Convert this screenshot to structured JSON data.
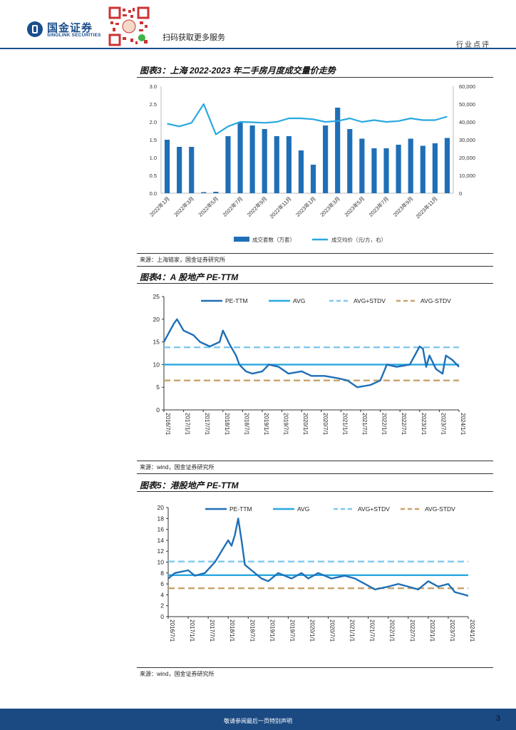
{
  "header": {
    "logo_cn": "国金证券",
    "logo_en": "SINOLINK SECURITIES",
    "qr_caption": "扫码获取更多服务",
    "category": "行业点评"
  },
  "fig3": {
    "title": "图表3：上海 2022-2023 年二手房月度成交量价走势",
    "source": "来源：上海链家，国金证券研究所",
    "chart_data": {
      "type": "bar",
      "categories": [
        "2022年1月",
        "2022年2月",
        "2022年3月",
        "2022年4月",
        "2022年5月",
        "2022年6月",
        "2022年7月",
        "2022年8月",
        "2022年9月",
        "2022年10月",
        "2022年11月",
        "2022年12月",
        "2023年1月",
        "2023年2月",
        "2023年3月",
        "2023年4月",
        "2023年5月",
        "2023年6月",
        "2023年7月",
        "2023年8月",
        "2023年9月",
        "2023年10月",
        "2023年11月",
        "2023年12月"
      ],
      "x_tick_labels": [
        "2022年1月",
        "2022年3月",
        "2022年5月",
        "2022年7月",
        "2022年9月",
        "2022年11月",
        "2023年1月",
        "2023年3月",
        "2023年5月",
        "2023年7月",
        "2023年9月",
        "2023年11月"
      ],
      "series": [
        {
          "name": "成交套数（万套）",
          "kind": "bar",
          "axis": "left",
          "color": "#1f6fb6",
          "values": [
            1.5,
            1.3,
            1.3,
            0.03,
            0.04,
            1.6,
            2.0,
            1.9,
            1.8,
            1.6,
            1.6,
            1.2,
            0.8,
            1.9,
            2.4,
            1.8,
            1.53,
            1.26,
            1.26,
            1.36,
            1.53,
            1.33,
            1.4,
            1.55
          ]
        },
        {
          "name": "成交均价（元/方，右）",
          "kind": "line",
          "axis": "right",
          "color": "#29a8e0",
          "values": [
            39000,
            37500,
            39500,
            50000,
            33000,
            37500,
            40000,
            39800,
            39500,
            40000,
            42000,
            42000,
            41500,
            40000,
            40500,
            42000,
            40000,
            41000,
            40000,
            40500,
            42000,
            41000,
            41000,
            43000
          ]
        }
      ],
      "y_left": {
        "ylim": [
          0,
          3.0
        ],
        "ticks": [
          "0.0",
          "0.5",
          "1.0",
          "1.5",
          "2.0",
          "2.5",
          "3.0"
        ]
      },
      "y_right": {
        "ylim": [
          0,
          60000
        ],
        "ticks": [
          "0",
          "10,000",
          "20,000",
          "30,000",
          "40,000",
          "50,000",
          "60,000"
        ]
      },
      "legend_position": "bottom"
    }
  },
  "fig4": {
    "title": "图表4：A 股地产 PE-TTM",
    "source": "来源：wind，国金证券研究所",
    "chart_data": {
      "type": "line",
      "x_tick_labels": [
        "2016/7/1",
        "2017/1/1",
        "2017/7/1",
        "2018/1/1",
        "2018/7/1",
        "2019/1/1",
        "2019/7/1",
        "2020/1/1",
        "2020/7/1",
        "2021/1/1",
        "2021/7/1",
        "2022/1/1",
        "2022/7/1",
        "2023/1/1",
        "2023/7/1",
        "2024/1/1"
      ],
      "ylim": [
        0,
        25
      ],
      "y_ticks": [
        "0",
        "5",
        "10",
        "15",
        "20",
        "25"
      ],
      "legend_position": "top",
      "series": [
        {
          "name": "PE-TTM",
          "kind": "line",
          "color": "#1f6fb6",
          "points": [
            [
              "2016/7/1",
              15
            ],
            [
              "2016/10/1",
              19
            ],
            [
              "2016/11/1",
              20
            ],
            [
              "2017/1/1",
              17.5
            ],
            [
              "2017/4/1",
              16.5
            ],
            [
              "2017/6/1",
              15
            ],
            [
              "2017/9/1",
              14
            ],
            [
              "2017/12/1",
              15
            ],
            [
              "2018/1/1",
              17.5
            ],
            [
              "2018/3/1",
              14.5
            ],
            [
              "2018/5/1",
              12
            ],
            [
              "2018/6/1",
              10
            ],
            [
              "2018/8/1",
              8.5
            ],
            [
              "2018/10/1",
              8
            ],
            [
              "2019/1/1",
              8.5
            ],
            [
              "2019/3/1",
              10
            ],
            [
              "2019/6/1",
              9.5
            ],
            [
              "2019/9/1",
              8
            ],
            [
              "2020/1/1",
              8.5
            ],
            [
              "2020/4/1",
              7.5
            ],
            [
              "2020/8/1",
              7.5
            ],
            [
              "2020/12/1",
              7
            ],
            [
              "2021/3/1",
              6.5
            ],
            [
              "2021/6/1",
              5
            ],
            [
              "2021/10/1",
              5.5
            ],
            [
              "2022/1/1",
              6.5
            ],
            [
              "2022/3/1",
              10
            ],
            [
              "2022/6/1",
              9.5
            ],
            [
              "2022/10/1",
              10
            ],
            [
              "2023/1/1",
              14
            ],
            [
              "2023/2/1",
              13.5
            ],
            [
              "2023/3/1",
              9.5
            ],
            [
              "2023/4/1",
              12
            ],
            [
              "2023/6/1",
              9
            ],
            [
              "2023/8/1",
              8
            ],
            [
              "2023/9/1",
              12
            ],
            [
              "2023/11/1",
              11
            ],
            [
              "2024/1/1",
              9.5
            ]
          ]
        },
        {
          "name": "AVG",
          "kind": "hline",
          "color": "#29a8e0",
          "value": 10
        },
        {
          "name": "AVG+STDV",
          "kind": "hline",
          "color": "#7ec8ee",
          "dash": true,
          "value": 13.8
        },
        {
          "name": "AVG-STDV",
          "kind": "hline",
          "color": "#c8a36a",
          "dash": true,
          "value": 6.5
        }
      ]
    }
  },
  "fig5": {
    "title": "图表5：港股地产 PE-TTM",
    "source": "来源：wind，国金证券研究所",
    "chart_data": {
      "type": "line",
      "x_tick_labels": [
        "2016/7/1",
        "2017/1/1",
        "2017/7/1",
        "2018/1/1",
        "2018/7/1",
        "2019/1/1",
        "2019/7/1",
        "2020/1/1",
        "2020/7/1",
        "2021/1/1",
        "2021/7/1",
        "2022/1/1",
        "2022/7/1",
        "2023/1/1",
        "2023/7/1",
        "2024/1/1"
      ],
      "ylim": [
        0,
        20
      ],
      "y_ticks": [
        "0",
        "2",
        "4",
        "6",
        "8",
        "10",
        "12",
        "14",
        "16",
        "18",
        "20"
      ],
      "legend_position": "top",
      "series": [
        {
          "name": "PE-TTM",
          "kind": "line",
          "color": "#1f6fb6",
          "points": [
            [
              "2016/7/1",
              7
            ],
            [
              "2016/9/1",
              8
            ],
            [
              "2017/1/1",
              8.5
            ],
            [
              "2017/3/1",
              7.5
            ],
            [
              "2017/6/1",
              8
            ],
            [
              "2017/9/1",
              10
            ],
            [
              "2017/12/1",
              13
            ],
            [
              "2018/1/1",
              14
            ],
            [
              "2018/2/1",
              13
            ],
            [
              "2018/3/1",
              15
            ],
            [
              "2018/4/1",
              18
            ],
            [
              "2018/5/1",
              14
            ],
            [
              "2018/6/1",
              9.5
            ],
            [
              "2018/8/1",
              8.5
            ],
            [
              "2018/11/1",
              7
            ],
            [
              "2019/1/1",
              6.5
            ],
            [
              "2019/4/1",
              8
            ],
            [
              "2019/8/1",
              7
            ],
            [
              "2019/11/1",
              8
            ],
            [
              "2020/1/1",
              7
            ],
            [
              "2020/4/1",
              8
            ],
            [
              "2020/8/1",
              7
            ],
            [
              "2020/12/1",
              7.5
            ],
            [
              "2021/3/1",
              7
            ],
            [
              "2021/6/1",
              6
            ],
            [
              "2021/9/1",
              5
            ],
            [
              "2022/1/1",
              5.5
            ],
            [
              "2022/4/1",
              6
            ],
            [
              "2022/7/1",
              5.5
            ],
            [
              "2022/10/1",
              5
            ],
            [
              "2023/1/1",
              6.5
            ],
            [
              "2023/4/1",
              5.5
            ],
            [
              "2023/7/1",
              6
            ],
            [
              "2023/9/1",
              4.5
            ],
            [
              "2023/12/1",
              4
            ],
            [
              "2024/1/1",
              3.8
            ]
          ]
        },
        {
          "name": "AVG",
          "kind": "hline",
          "color": "#29a8e0",
          "value": 7.6
        },
        {
          "name": "AVG+STDV",
          "kind": "hline",
          "color": "#7ec8ee",
          "dash": true,
          "value": 10.1
        },
        {
          "name": "AVG-STDV",
          "kind": "hline",
          "color": "#c8a36a",
          "dash": true,
          "value": 5.2
        }
      ]
    }
  },
  "footer": {
    "disclaimer": "敬请参阅最后一页特别声明",
    "page": "3"
  }
}
